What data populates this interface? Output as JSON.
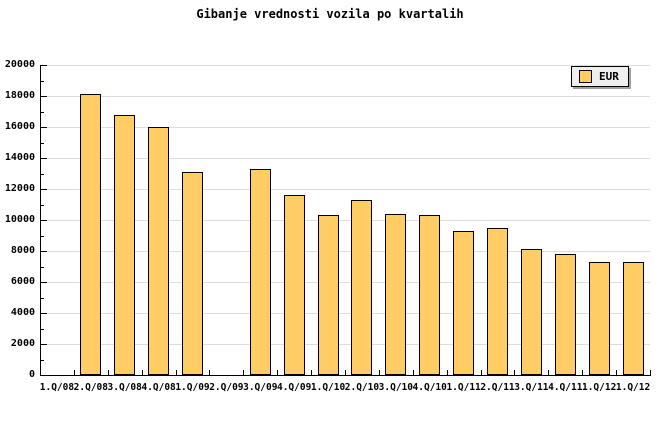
{
  "chart_data": {
    "type": "bar",
    "title": "Gibanje vrednosti vozila po kvartalih",
    "categories": [
      "1.Q/08",
      "2.Q/08",
      "3.Q/08",
      "4.Q/08",
      "1.Q/09",
      "2.Q/09",
      "3.Q/09",
      "4.Q/09",
      "1.Q/10",
      "2.Q/10",
      "3.Q/10",
      "4.Q/10",
      "1.Q/11",
      "2.Q/11",
      "3.Q/11",
      "4.Q/11",
      "1.Q/12",
      "1.Q/12"
    ],
    "series": [
      {
        "name": "EUR",
        "values": [
          null,
          18100,
          16800,
          16000,
          13100,
          null,
          13300,
          11600,
          10300,
          11300,
          10400,
          10300,
          9300,
          9500,
          8100,
          7800,
          7300,
          7300
        ]
      }
    ],
    "xlabel": "",
    "ylabel": "",
    "ylim": [
      0,
      20000
    ],
    "y_major_step": 2000,
    "y_minor_step": 1000,
    "y_tick_labels": [
      "0",
      "2000",
      "4000",
      "6000",
      "8000",
      "10000",
      "12000",
      "14000",
      "16000",
      "18000",
      "20000"
    ],
    "grid": "horizontal",
    "legend": {
      "position": "top-right",
      "entries": [
        {
          "label": "EUR",
          "swatch_color": "#FFCC66"
        }
      ]
    },
    "colors": {
      "bar_fill": "#FFCC66",
      "bar_border": "#000000",
      "gridline": "#DCDCDC",
      "axis": "#000000",
      "legend_bg": "#EFEFEF",
      "legend_shadow": "#A0A0A0",
      "background": "#FFFFFF",
      "text": "#000000"
    }
  }
}
